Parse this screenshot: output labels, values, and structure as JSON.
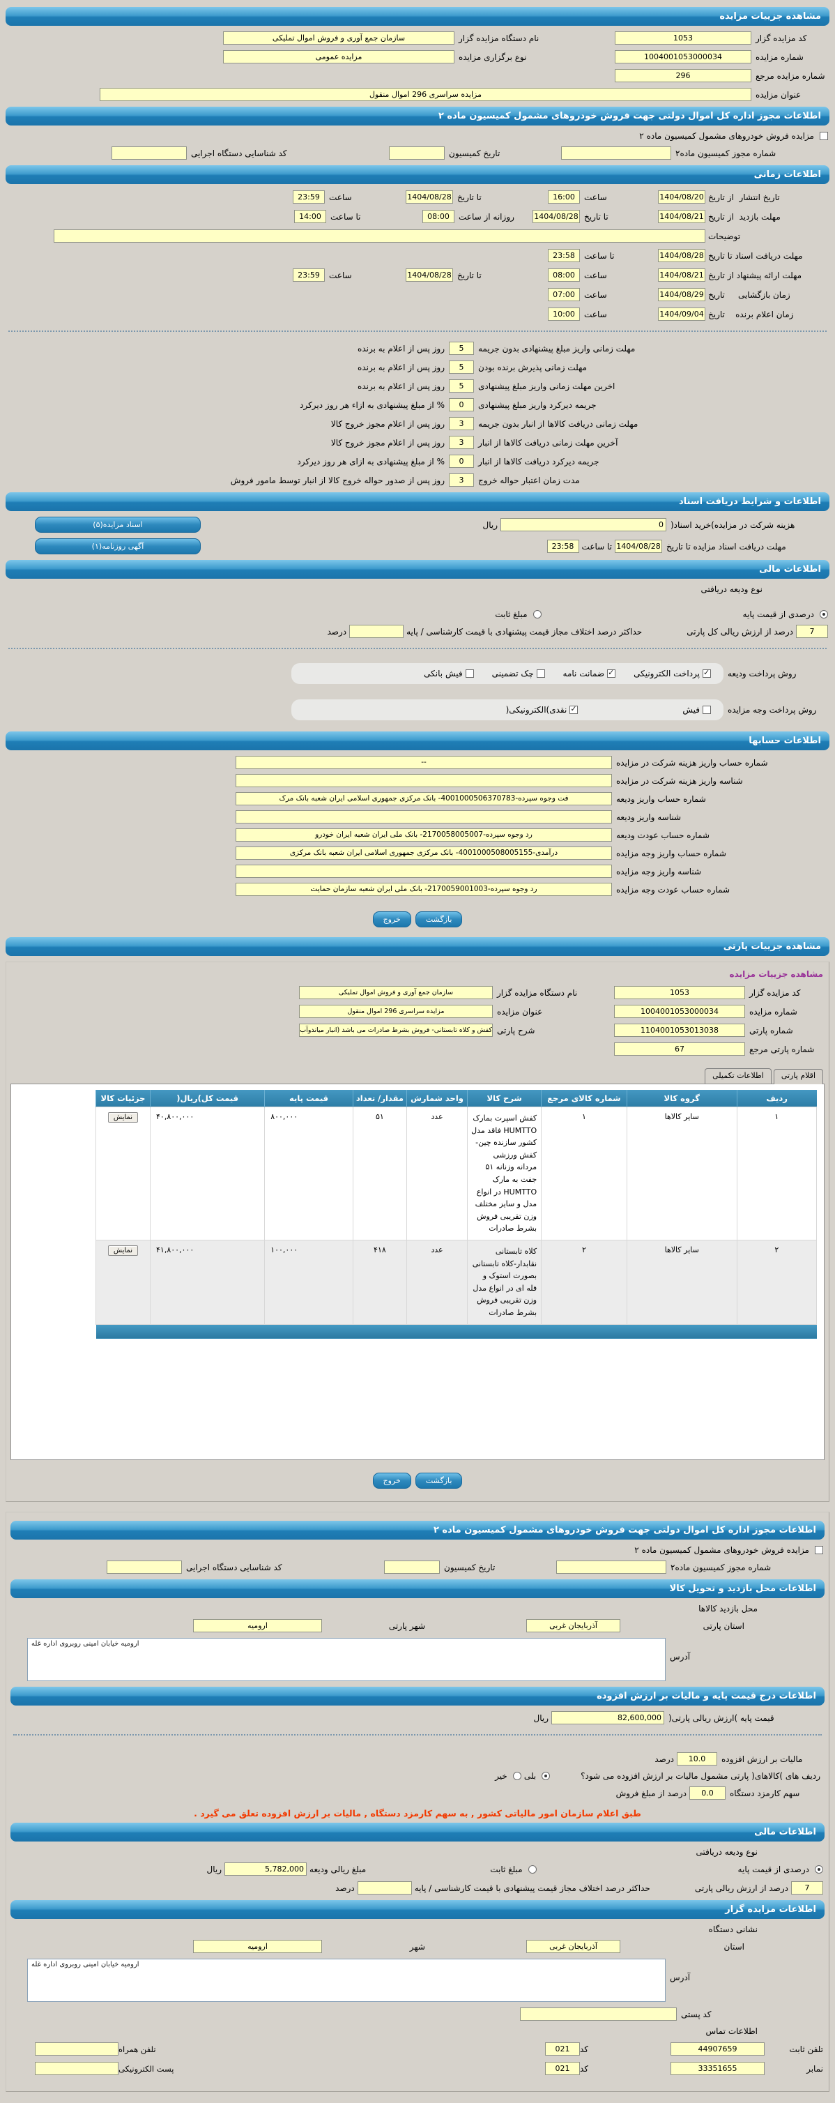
{
  "common": {
    "hour": "ساعت",
    "to_hour": "تا ساعت",
    "to_date": "تا تاریخ",
    "daily_from": "روزانه از ساعت",
    "rial": "ریال",
    "percent": "درصد",
    "code": "کد"
  },
  "section_headers": {
    "auction_details": "مشاهده جزییات مزایده",
    "permit": "اطلاعات مجوز اداره کل اموال دولتی جهت فروش خودروهای مشمول کمیسیون ماده ۲",
    "timing": "اطلاعات زمانی",
    "documents": "اطلاعات و شرایط دریافت اسناد",
    "financial": "اطلاعات مالی",
    "accounts": "اطلاعات حسابها",
    "party_details": "مشاهده جزییات پارتی",
    "visit_location": "اطلاعات محل بازدید و تحویل کالا",
    "base_price_vat": "اطلاعات درج قیمت پایه و مالیات بر ارزش افزوده",
    "auctioneer": "اطلاعات مزایده گزار"
  },
  "auction": {
    "code_label": "کد مزایده گزار",
    "code": "1053",
    "org_label": "نام دستگاه مزایده گزار",
    "org": "سازمان جمع آوری و فروش اموال تملیکی",
    "number_label": "شماره مزایده",
    "number": "1004001053000034",
    "type_label": "نوع برگزاری مزایده",
    "type": "مزایده عمومی",
    "ref_label": "شماره مزایده مرجع",
    "ref": "296",
    "title_label": "عنوان مزایده",
    "title": "مزایده سراسری 296 اموال منقول"
  },
  "permit": {
    "checkbox_label": "مزایده فروش خودروهای مشمول کمیسیون ماده ۲",
    "checkbox_checked": false,
    "permit_no_label": "شماره مجوز کمیسیون ماده۲",
    "permit_no": "",
    "commission_date_label": "تاریخ کمیسیون",
    "commission_date": "",
    "exec_id_label": "کد شناسایی دستگاه اجرایی",
    "exec_id": ""
  },
  "timing": {
    "publish": {
      "label": "تاریخ انتشار  از تاریخ",
      "d1": "1404/08/20",
      "t1": "16:00",
      "d2": "1404/08/28",
      "t2": "23:59"
    },
    "visit": {
      "label": "مهلت بازدید  از تاریخ",
      "d1": "1404/08/21",
      "d2": "1404/08/28",
      "t1": "08:00",
      "t2": "14:00"
    },
    "notes_label": "توضیحات",
    "notes_value": "",
    "docs_deadline": {
      "label": "مهلت دریافت اسناد تا تاریخ",
      "d1": "1404/08/28",
      "t1": "23:58"
    },
    "offer": {
      "label": "مهلت ارائه پیشنهاد از تاریخ",
      "d1": "1404/08/21",
      "t1": "08:00",
      "d2": "1404/08/28",
      "t2": "23:59"
    },
    "opening": {
      "label": "زمان بازگشایی     تاریخ",
      "d1": "1404/08/29",
      "t1": "07:00"
    },
    "winner": {
      "label": "زمان اعلام برنده    تاریخ",
      "d1": "1404/09/04",
      "t1": "10:00"
    },
    "penalties": [
      {
        "label": "مهلت زمانی واریز مبلغ پیشنهادی بدون جریمه",
        "value": "5",
        "suffix": "روز پس از اعلام به برنده"
      },
      {
        "label": "مهلت زمانی پذیرش برنده بودن",
        "value": "5",
        "suffix": "روز پس از اعلام به برنده"
      },
      {
        "label": "اخرین مهلت زمانی واریز مبلغ پیشنهادی",
        "value": "5",
        "suffix": "روز پس از اعلام به برنده"
      },
      {
        "label": "جریمه دیرکرد واریز مبلغ پیشنهادی",
        "value": "0",
        "suffix": "% از مبلغ پیشنهادی به ازاء هر روز دیرکرد"
      },
      {
        "label": "مهلت زمانی دریافت کالاها از انبار بدون جریمه",
        "value": "3",
        "suffix": "روز پس از اعلام مجوز خروج کالا"
      },
      {
        "label": "آخرین مهلت زمانی دریافت کالاها از انبار",
        "value": "3",
        "suffix": "روز پس از اعلام مجوز خروج کالا"
      },
      {
        "label": "جریمه دیرکرد دریافت کالاها از انبار",
        "value": "0",
        "suffix": "% از مبلغ پیشنهادی به ازای هر روز دیرکرد"
      },
      {
        "label": "مدت زمان اعتبار حواله خروج",
        "value": "3",
        "suffix": "روز پس از صدور حواله خروج کالا از انبار توسط مامور فروش"
      }
    ]
  },
  "docs": {
    "fee_label": "هزینه شرکت در مزایده)خرید اسناد(",
    "fee_value": "0",
    "deadline_label": "مهلت دریافت اسناد مزایده تا تاریخ",
    "date": "1404/08/28",
    "time": "23:58",
    "docs_button": "اسناد مزایده(۵)",
    "ad_button": "آگهی روزنامه(۱)"
  },
  "fin1": {
    "type_label": "نوع ودیعه دریافتی",
    "radio_percent": "درصدی از قیمت پایه",
    "radio_fixed": "مبلغ ثابت",
    "percent_selected": true,
    "fixed_selected": false,
    "percent_value": "7",
    "percent_of_label": "درصد از ارزش ریالی کل پارتی",
    "max_diff_label": "حداکثر درصد اختلاف مجاز قیمت پیشنهادی با قیمت کارشناسی / پایه",
    "max_diff_value": "",
    "deposit_methods_label": "روش پرداخت ودیعه",
    "deposit_methods": [
      {
        "label": "پرداخت الکترونیکی",
        "checked": true
      },
      {
        "label": "ضمانت نامه",
        "checked": true
      },
      {
        "label": "چک تضمینی",
        "checked": false
      },
      {
        "label": "فیش بانکی",
        "checked": false
      }
    ],
    "fee_methods_label": "روش پرداخت وجه مزایده",
    "fee_methods": [
      {
        "label": "فیش",
        "checked": false
      },
      {
        "label": "نقدی)الکترونیکی(",
        "checked": true
      }
    ]
  },
  "accounts": [
    {
      "label": "شماره حساب واریز هزینه شرکت در مزایده",
      "value": "--"
    },
    {
      "label": "شناسه واریز هزینه شرکت در مزایده",
      "value": ""
    },
    {
      "label": "شماره حساب واریز ودیعه",
      "value": "فت وجوه سپرده-4001000506370783- بانک مرکزی جمهوری اسلامی ایران شعبه بانک مرک"
    },
    {
      "label": "شناسه واریز ودیعه",
      "value": ""
    },
    {
      "label": "شماره حساب عودت ودیعه",
      "value": "رد وجوه سپرده-2170058005007- بانک ملی ایران شعبه ایران خودرو"
    },
    {
      "label": "شماره حساب واریز وجه مزایده",
      "value": "درآمدی-4001000508005155- بانک مرکزی جمهوری اسلامی ایران شعبه بانک مرکزی"
    },
    {
      "label": "شناسه واریز وجه مزایده",
      "value": ""
    },
    {
      "label": "شماره حساب عودت وجه مزایده",
      "value": "رد وجوه سپرده-2170059001003- بانک ملی ایران شعبه سازمان حمایت"
    }
  ],
  "nav": {
    "back": "بازگشت",
    "exit": "خروج"
  },
  "party": {
    "view_label": "مشاهده جزییات مزایده",
    "code_label": "کد مزایده گزار",
    "code": "1053",
    "org_label": "نام دستگاه مزایده گزار",
    "org": "سازمان جمع آوری و فروش اموال تملیکی",
    "number_label": "شماره مزایده",
    "number": "1004001053000034",
    "title_label": "عنوان مزایده",
    "title": "مزایده سراسری 296 اموال منقول",
    "party_no_label": "شماره پارتی",
    "party_no": "1104001053013038",
    "desc_label": "شرح پارتی",
    "desc": "کفش و کلاه تابستانی- فروش بشرط صادرات می باشد (انبار میاندوآب)",
    "ref_label": "شماره پارتی مرجع",
    "ref": "67"
  },
  "tabs": {
    "items": [
      {
        "label": "اقلام پارتی",
        "active": true
      },
      {
        "label": "اطلاعات تکمیلی",
        "active": false
      }
    ]
  },
  "items_table": {
    "headers": [
      "ردیف",
      "گروه کالا",
      "شماره کالای مرجع",
      "شرح کالا",
      "واحد شمارش",
      "مقدار/ تعداد",
      "قیمت پایه",
      "قیمت کل)ریال(",
      "جزئیات کالا"
    ],
    "show_button": "نمایش",
    "rows": [
      {
        "row": "۱",
        "group": "سایر کالاها",
        "ref": "۱",
        "desc": "کفش اسپرت بمارک HUMTTO فاقد مدل کشور سازنده چین-کفش ورزشی مردانه وزنانه ۵۱ جفت به مارک HUMTTO در انواع مدل و سایز مختلف وزن تقریبی فروش بشرط صادرات",
        "unit": "عدد",
        "qty": "۵۱",
        "base_price": "۸۰۰,۰۰۰",
        "total_price": "۴۰,۸۰۰,۰۰۰"
      },
      {
        "row": "۲",
        "group": "سایر کالاها",
        "ref": "۲",
        "desc": "کلاه تابستانی نقابدار-کلاه تابستانی بصورت استوک و فله ای در انواع مدل وزن تقریبی فروش بشرط صادرات",
        "unit": "عدد",
        "qty": "۴۱۸",
        "base_price": "۱۰۰,۰۰۰",
        "total_price": "۴۱,۸۰۰,۰۰۰"
      }
    ]
  },
  "visit": {
    "location_label": "محل بازدید کالاها",
    "province_label": "استان پارتی",
    "province": "آذربایجان غربی",
    "city_label": "شهر پارتی",
    "city": "ارومیه",
    "address_label": "آدرس",
    "address": "ارومیه خیابان امینی روبروی اداره غله"
  },
  "pricevat": {
    "base_label": "قیمت پایه )ارزش ریالی پارتی(",
    "base_value": "82,600,000",
    "vat_label": "مالیات بر ارزش افزوده",
    "vat_value": "10.0",
    "question": "ردیف های )کالاهای( پارتی مشمول مالیات بر ارزش افزوده می شود؟",
    "yes_label": "بلی",
    "no_label": "خیر",
    "yes_selected": true,
    "no_selected": false,
    "commission_label": "سهم کارمزد دستگاه",
    "commission_value": "0.0",
    "commission_suffix": "درصد از مبلغ فروش",
    "note": "طبق اعلام سازمان امور مالیاتی کشور , به سهم کارمزد دستگاه , مالیات بر ارزش افزوده تعلق می گیرد ."
  },
  "fin2": {
    "type_label": "نوع ودیعه دریافتی",
    "radio_percent": "درصدی از قیمت پایه",
    "radio_fixed": "مبلغ ثابت",
    "percent_selected": true,
    "fixed_selected": false,
    "amount_label": "مبلغ ریالی ودیعه",
    "amount": "5,782,000",
    "percent_value": "7",
    "percent_of_label": "درصد از ارزش ریالی پارتی",
    "max_diff_label": "حداکثر درصد اختلاف مجاز قیمت پیشنهادی با قیمت کارشناسی / پایه",
    "max_diff_value": ""
  },
  "auctioneer": {
    "address_title": "نشانی دستگاه",
    "province_label": "استان",
    "province": "آذربایجان غربی",
    "city_label": "شهر",
    "city": "ارومیه",
    "address_label": "آدرس",
    "address": "ارومیه خیابان امینی روبروی اداره غله",
    "postal_label": "کد پستی",
    "postal": "",
    "contact_title": "اطلاعات تماس",
    "phone_label": "تلفن ثابت",
    "phone": "44907659",
    "phone_code": "021",
    "mobile_label": "تلفن همراه",
    "mobile": "",
    "fax_label": "نمابر",
    "fax": "33351655",
    "fax_code": "021",
    "email_label": "پست الکترونیکی",
    "email": ""
  }
}
